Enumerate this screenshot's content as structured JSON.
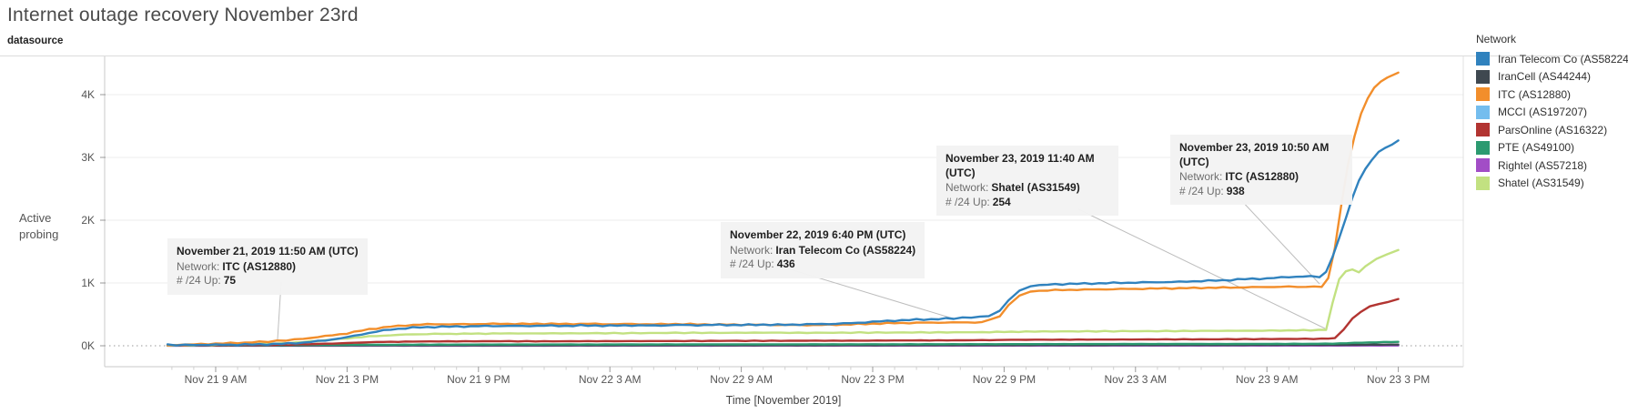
{
  "title": "Internet outage recovery November 23rd",
  "datasource_label": "datasource",
  "legend": {
    "title": "Network",
    "items": [
      {
        "label": "Iran Telecom Co (AS58224)",
        "color": "#3082be"
      },
      {
        "label": "IranCell (AS44244)",
        "color": "#3f4850"
      },
      {
        "label": "ITC (AS12880)",
        "color": "#f28e2b"
      },
      {
        "label": "MCCI (AS197207)",
        "color": "#74bdee"
      },
      {
        "label": "ParsOnline (AS16322)",
        "color": "#b23431"
      },
      {
        "label": "PTE (AS49100)",
        "color": "#2c9a70"
      },
      {
        "label": "Rightel (AS57218)",
        "color": "#a24dc6"
      },
      {
        "label": "Shatel (AS31549)",
        "color": "#c2e181"
      }
    ]
  },
  "annotations": [
    {
      "date": "November 21, 2019 11:50 AM (UTC)",
      "network_label": "Network:",
      "network": "ITC (AS12880)",
      "up_label": "# /24 Up:",
      "up": "75"
    },
    {
      "date": "November 22, 2019 6:40 PM (UTC)",
      "network_label": "Network:",
      "network": "Iran Telecom Co (AS58224)",
      "up_label": "# /24 Up:",
      "up": "436"
    },
    {
      "date": "November 23, 2019 11:40 AM (UTC)",
      "network_label": "Network:",
      "network": "Shatel (AS31549)",
      "up_label": "# /24 Up:",
      "up": "254"
    },
    {
      "date": "November 23, 2019 10:50 AM (UTC)",
      "network_label": "Network:",
      "network": "ITC (AS12880)",
      "up_label": "# /24 Up:",
      "up": "938"
    }
  ],
  "chart_data": {
    "type": "line",
    "title": "Internet outage recovery November 23rd",
    "xlabel": "Time [November 2019]",
    "ylabel": "Active probing",
    "x_unit": "hours since Nov 21, 2019 6:00 AM (UTC)",
    "ylim": [
      0,
      4500
    ],
    "grid": true,
    "legend_position": "right",
    "yticks": [
      {
        "v": 0,
        "label": "0K"
      },
      {
        "v": 1000,
        "label": "1K"
      },
      {
        "v": 2000,
        "label": "2K"
      },
      {
        "v": 3000,
        "label": "3K"
      },
      {
        "v": 4000,
        "label": "4K"
      }
    ],
    "xticks": [
      {
        "t": 3,
        "label": "Nov 21 9 AM"
      },
      {
        "t": 9,
        "label": "Nov 21 3 PM"
      },
      {
        "t": 15,
        "label": "Nov 21 9 PM"
      },
      {
        "t": 21,
        "label": "Nov 22 3 AM"
      },
      {
        "t": 27,
        "label": "Nov 22 9 AM"
      },
      {
        "t": 33,
        "label": "Nov 22 3 PM"
      },
      {
        "t": 39,
        "label": "Nov 22 9 PM"
      },
      {
        "t": 45,
        "label": "Nov 23 3 AM"
      },
      {
        "t": 51,
        "label": "Nov 23 9 AM"
      },
      {
        "t": 57,
        "label": "Nov 23 3 PM"
      }
    ],
    "series": [
      {
        "name": "MCCI (AS197207)",
        "color": "#74bdee",
        "points": [
          [
            0.8,
            2
          ],
          [
            20,
            3
          ],
          [
            40,
            4
          ],
          [
            57,
            6
          ]
        ]
      },
      {
        "name": "Rightel (AS57218)",
        "color": "#a24dc6",
        "points": [
          [
            0.8,
            1
          ],
          [
            20,
            2
          ],
          [
            40,
            3
          ],
          [
            57,
            4
          ]
        ]
      },
      {
        "name": "IranCell (AS44244)",
        "color": "#3f4850",
        "points": [
          [
            0.8,
            3
          ],
          [
            12,
            6
          ],
          [
            24,
            8
          ],
          [
            39,
            10
          ],
          [
            50,
            12
          ],
          [
            54,
            15
          ],
          [
            57,
            19
          ]
        ]
      },
      {
        "name": "PTE (AS49100)",
        "color": "#2c9a70",
        "points": [
          [
            0.8,
            5
          ],
          [
            6,
            11
          ],
          [
            12,
            18
          ],
          [
            20,
            21
          ],
          [
            30,
            23
          ],
          [
            39,
            26
          ],
          [
            48,
            29
          ],
          [
            53,
            31
          ],
          [
            54,
            34
          ],
          [
            55,
            46
          ],
          [
            56,
            56
          ],
          [
            57,
            63
          ]
        ]
      },
      {
        "name": "ParsOnline (AS16322)",
        "color": "#b23431",
        "points": [
          [
            0.8,
            4
          ],
          [
            3,
            8
          ],
          [
            6,
            16
          ],
          [
            8,
            32
          ],
          [
            9,
            42
          ],
          [
            10,
            56
          ],
          [
            11,
            63
          ],
          [
            12,
            68
          ],
          [
            14,
            71
          ],
          [
            16,
            73
          ],
          [
            18,
            71
          ],
          [
            20,
            73
          ],
          [
            24,
            76
          ],
          [
            28,
            79
          ],
          [
            32,
            81
          ],
          [
            36,
            86
          ],
          [
            38,
            89
          ],
          [
            39,
            93
          ],
          [
            40,
            96
          ],
          [
            44,
            99
          ],
          [
            48,
            103
          ],
          [
            52,
            109
          ],
          [
            53.5,
            111
          ],
          [
            54.1,
            118
          ],
          [
            54.5,
            260
          ],
          [
            54.9,
            430
          ],
          [
            55.3,
            545
          ],
          [
            55.7,
            625
          ],
          [
            56.1,
            665
          ],
          [
            56.5,
            695
          ],
          [
            57,
            745
          ]
        ]
      },
      {
        "name": "Shatel (AS31549)",
        "color": "#c2e181",
        "points": [
          [
            0.8,
            6
          ],
          [
            2,
            12
          ],
          [
            4,
            22
          ],
          [
            6,
            38
          ],
          [
            7,
            58
          ],
          [
            8,
            88
          ],
          [
            9,
            118
          ],
          [
            10,
            148
          ],
          [
            11,
            168
          ],
          [
            12,
            182
          ],
          [
            13,
            188
          ],
          [
            14,
            191
          ],
          [
            15,
            193
          ],
          [
            16,
            196
          ],
          [
            18,
            197
          ],
          [
            20,
            199
          ],
          [
            22,
            201
          ],
          [
            24,
            206
          ],
          [
            26,
            206
          ],
          [
            28,
            209
          ],
          [
            30,
            206
          ],
          [
            32,
            209
          ],
          [
            34,
            211
          ],
          [
            36,
            213
          ],
          [
            38,
            216
          ],
          [
            39,
            221
          ],
          [
            40,
            226
          ],
          [
            42,
            229
          ],
          [
            44,
            231
          ],
          [
            46,
            233
          ],
          [
            48,
            236
          ],
          [
            50,
            239
          ],
          [
            52,
            243
          ],
          [
            53,
            248
          ],
          [
            53.7,
            254
          ],
          [
            54,
            680
          ],
          [
            54.3,
            1060
          ],
          [
            54.6,
            1185
          ],
          [
            54.9,
            1215
          ],
          [
            55.2,
            1175
          ],
          [
            55.5,
            1265
          ],
          [
            56,
            1385
          ],
          [
            56.5,
            1460
          ],
          [
            57,
            1525
          ]
        ]
      },
      {
        "name": "ITC (AS12880)",
        "color": "#f28e2b",
        "points": [
          [
            0.8,
            8
          ],
          [
            2,
            22
          ],
          [
            3,
            32
          ],
          [
            4,
            46
          ],
          [
            5,
            62
          ],
          [
            5.8,
            75
          ],
          [
            7,
            112
          ],
          [
            8,
            152
          ],
          [
            9,
            198
          ],
          [
            10,
            262
          ],
          [
            11,
            305
          ],
          [
            12,
            332
          ],
          [
            13,
            345
          ],
          [
            14,
            341
          ],
          [
            15,
            346
          ],
          [
            16,
            350
          ],
          [
            17,
            346
          ],
          [
            18,
            351
          ],
          [
            19,
            346
          ],
          [
            20,
            349
          ],
          [
            21,
            343
          ],
          [
            22,
            346
          ],
          [
            23,
            341
          ],
          [
            24,
            346
          ],
          [
            25,
            341
          ],
          [
            26,
            338
          ],
          [
            27,
            336
          ],
          [
            28,
            333
          ],
          [
            29,
            331
          ],
          [
            30,
            329
          ],
          [
            31,
            333
          ],
          [
            32,
            341
          ],
          [
            33,
            351
          ],
          [
            34,
            361
          ],
          [
            35,
            366
          ],
          [
            36,
            369
          ],
          [
            37,
            371
          ],
          [
            38,
            374
          ],
          [
            38.8,
            470
          ],
          [
            39.2,
            640
          ],
          [
            39.7,
            800
          ],
          [
            40.2,
            862
          ],
          [
            41,
            882
          ],
          [
            42,
            892
          ],
          [
            43,
            896
          ],
          [
            44,
            902
          ],
          [
            45,
            906
          ],
          [
            46,
            912
          ],
          [
            47,
            916
          ],
          [
            48,
            922
          ],
          [
            49,
            926
          ],
          [
            50,
            931
          ],
          [
            51,
            936
          ],
          [
            52,
            941
          ],
          [
            52.8,
            938
          ],
          [
            53.5,
            945
          ],
          [
            53.8,
            1080
          ],
          [
            54.1,
            1550
          ],
          [
            54.4,
            2250
          ],
          [
            54.7,
            2880
          ],
          [
            55,
            3340
          ],
          [
            55.3,
            3690
          ],
          [
            55.6,
            3940
          ],
          [
            55.9,
            4110
          ],
          [
            56.2,
            4210
          ],
          [
            56.5,
            4280
          ],
          [
            57,
            4350
          ]
        ]
      },
      {
        "name": "Iran Telecom Co (AS58224)",
        "color": "#3082be",
        "points": [
          [
            0.8,
            12
          ],
          [
            2,
            14
          ],
          [
            3,
            16
          ],
          [
            4,
            18
          ],
          [
            5,
            22
          ],
          [
            6,
            30
          ],
          [
            7,
            50
          ],
          [
            8,
            85
          ],
          [
            9,
            135
          ],
          [
            10,
            205
          ],
          [
            11,
            260
          ],
          [
            12,
            288
          ],
          [
            13,
            300
          ],
          [
            14,
            306
          ],
          [
            15,
            312
          ],
          [
            16,
            316
          ],
          [
            17,
            314
          ],
          [
            18,
            320
          ],
          [
            19,
            317
          ],
          [
            20,
            322
          ],
          [
            21,
            319
          ],
          [
            22,
            325
          ],
          [
            23,
            321
          ],
          [
            24,
            330
          ],
          [
            25,
            327
          ],
          [
            26,
            333
          ],
          [
            27,
            330
          ],
          [
            28,
            336
          ],
          [
            29,
            333
          ],
          [
            30,
            342
          ],
          [
            31,
            348
          ],
          [
            32,
            358
          ],
          [
            33,
            382
          ],
          [
            34,
            402
          ],
          [
            35,
            415
          ],
          [
            36,
            426
          ],
          [
            36.7,
            436
          ],
          [
            37.5,
            452
          ],
          [
            38.3,
            472
          ],
          [
            38.8,
            560
          ],
          [
            39.2,
            720
          ],
          [
            39.7,
            880
          ],
          [
            40.2,
            950
          ],
          [
            41,
            975
          ],
          [
            42,
            985
          ],
          [
            43,
            992
          ],
          [
            44,
            1000
          ],
          [
            45,
            1006
          ],
          [
            46,
            1012
          ],
          [
            47,
            1018
          ],
          [
            48,
            1032
          ],
          [
            49,
            1042
          ],
          [
            50,
            1062
          ],
          [
            51,
            1072
          ],
          [
            52,
            1096
          ],
          [
            53,
            1106
          ],
          [
            53.4,
            1100
          ],
          [
            53.7,
            1180
          ],
          [
            54,
            1420
          ],
          [
            54.3,
            1720
          ],
          [
            54.6,
            2020
          ],
          [
            54.9,
            2360
          ],
          [
            55.2,
            2620
          ],
          [
            55.5,
            2820
          ],
          [
            55.8,
            2960
          ],
          [
            56.1,
            3090
          ],
          [
            56.4,
            3160
          ],
          [
            56.7,
            3200
          ],
          [
            57,
            3270
          ]
        ]
      }
    ]
  }
}
